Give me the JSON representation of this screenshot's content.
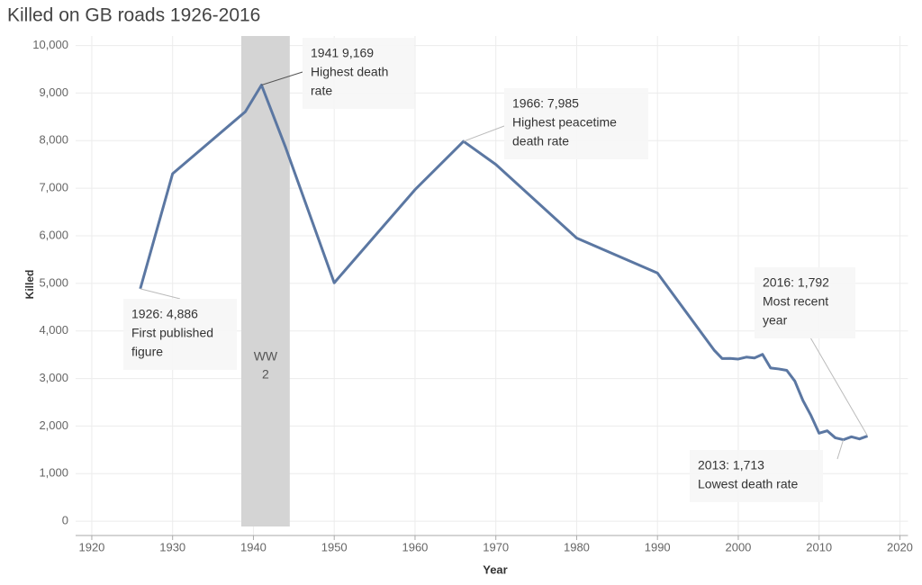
{
  "chart_data": {
    "type": "line",
    "title": "Killed on GB roads 1926-2016",
    "x_label": "Year",
    "y_label": "Killed",
    "x": [
      1926,
      1930,
      1939,
      1941,
      1944,
      1950,
      1960,
      1966,
      1970,
      1980,
      1990,
      1997,
      1998,
      1999,
      2000,
      2001,
      2002,
      2003,
      2004,
      2005,
      2006,
      2007,
      2008,
      2009,
      2010,
      2011,
      2012,
      2013,
      2014,
      2015,
      2016
    ],
    "series": [
      {
        "name": "Killed",
        "color": "#5b77a2",
        "values": [
          4886,
          7305,
          8609,
          9169,
          7850,
          5012,
          6970,
          7985,
          7499,
          5953,
          5217,
          3599,
          3421,
          3423,
          3409,
          3450,
          3431,
          3508,
          3221,
          3201,
          3172,
          2946,
          2538,
          2222,
          1850,
          1901,
          1754,
          1713,
          1775,
          1730,
          1792
        ]
      }
    ],
    "xlim": [
      1918,
      2021
    ],
    "xticks": [
      1920,
      1930,
      1940,
      1950,
      1960,
      1970,
      1980,
      1990,
      2000,
      2010,
      2020
    ],
    "ylim": [
      -300,
      10200
    ],
    "yticks": [
      0,
      {
        "value": 1000,
        "label": "1,000"
      },
      {
        "value": 2000,
        "label": "2,000"
      },
      {
        "value": 3000,
        "label": "3,000"
      },
      {
        "value": 4000,
        "label": "4,000"
      },
      {
        "value": 5000,
        "label": "5,000"
      },
      {
        "value": 6000,
        "label": "6,000"
      },
      {
        "value": 7000,
        "label": "7,000"
      },
      {
        "value": 8000,
        "label": "8,000"
      },
      {
        "value": 9000,
        "label": "9,000"
      },
      {
        "value": 10000,
        "label": "10,000"
      }
    ],
    "grid": true,
    "shade": {
      "from": 1938.5,
      "to": 1944.5,
      "color": "#d4d4d4",
      "label": [
        "WW",
        "2"
      ]
    },
    "annotations": [
      {
        "x": 1926,
        "y": 4886,
        "lines": [
          "1926: 4,886",
          "First published",
          "figure"
        ]
      },
      {
        "x": 1941,
        "y": 9169,
        "lines": [
          "1941  9,169",
          "Highest death",
          "rate"
        ]
      },
      {
        "x": 1966,
        "y": 7985,
        "lines": [
          "1966: 7,985",
          "Highest peacetime",
          "death rate"
        ]
      },
      {
        "x": 2016,
        "y": 1792,
        "lines": [
          "2016: 1,792",
          "Most recent",
          "year"
        ]
      },
      {
        "x": 2013,
        "y": 1713,
        "lines": [
          "2013: 1,713",
          "Lowest death rate"
        ]
      }
    ]
  }
}
